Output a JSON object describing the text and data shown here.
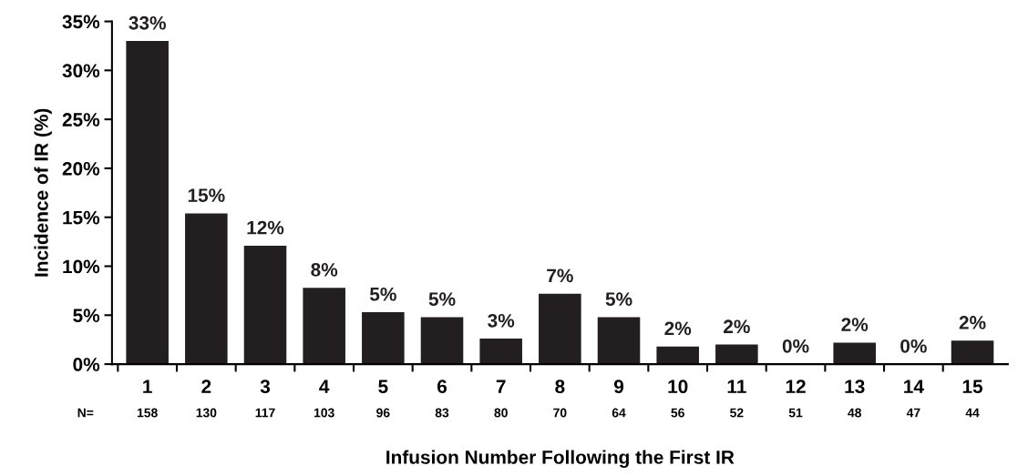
{
  "chart_data": {
    "type": "bar",
    "xlabel": "Infusion Number Following the First IR",
    "ylabel": "Incidence of IR (%)",
    "categories": [
      "1",
      "2",
      "3",
      "4",
      "5",
      "6",
      "7",
      "8",
      "9",
      "10",
      "11",
      "12",
      "13",
      "14",
      "15"
    ],
    "values": [
      33.0,
      15.4,
      12.1,
      7.8,
      5.3,
      4.8,
      2.6,
      7.2,
      4.8,
      1.8,
      2.0,
      0,
      2.2,
      0,
      2.4
    ],
    "value_labels": [
      "33%",
      "15%",
      "12%",
      "8%",
      "5%",
      "5%",
      "3%",
      "7%",
      "5%",
      "2%",
      "2%",
      "0%",
      "2%",
      "0%",
      "2%"
    ],
    "color": "#231f20",
    "ylim": [
      0,
      35
    ],
    "yticks": [
      {
        "value": 0,
        "label": "0%"
      },
      {
        "value": 5,
        "label": "5%"
      },
      {
        "value": 10,
        "label": "10%"
      },
      {
        "value": 15,
        "label": "15%"
      },
      {
        "value": 20,
        "label": "20%"
      },
      {
        "value": 25,
        "label": "25%"
      },
      {
        "value": 30,
        "label": "30%"
      },
      {
        "value": 35,
        "label": "35%"
      }
    ],
    "annotations": [
      "N=",
      "158",
      "130",
      "117",
      "103",
      "96",
      "83",
      "80",
      "70",
      "64",
      "56",
      "52",
      "51",
      "48",
      "47",
      "44"
    ],
    "grid": false,
    "legend": false
  }
}
